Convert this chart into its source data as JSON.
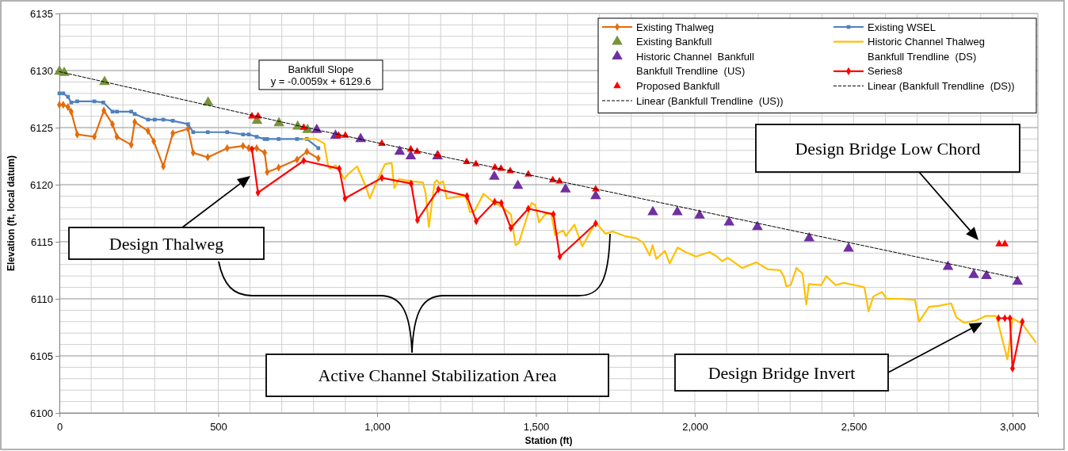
{
  "chart_data": {
    "type": "line",
    "xlabel": "Station (ft)",
    "ylabel": "Elevation (ft, local datum)",
    "xlim": [
      0,
      3080
    ],
    "ylim": [
      6100,
      6135
    ],
    "xticks": [
      0,
      500,
      {
        "value": 1000,
        "label": "1,000"
      },
      {
        "value": 1500,
        "label": "1,500"
      },
      {
        "value": 2000,
        "label": "2,000"
      },
      {
        "value": 2500,
        "label": "2,500"
      },
      {
        "value": 3000,
        "label": "3,000"
      }
    ],
    "yticks": [
      6100,
      6105,
      6110,
      6115,
      6120,
      6125,
      6130,
      6135
    ],
    "grid": true,
    "legend": "top right",
    "series": [
      {
        "name": "Existing Thalweg",
        "marker": "diamond",
        "color": "#e46c0a",
        "x": [
          0,
          12,
          27,
          37,
          56,
          110,
          140,
          167,
          181,
          226,
          237,
          279,
          297,
          327,
          357,
          405,
          421,
          467,
          528,
          578,
          596,
          621,
          646,
          654,
          690,
          748,
          779,
          815
        ],
        "values": [
          6127.0,
          6127.0,
          6126.8,
          6126.4,
          6124.4,
          6124.2,
          6126.5,
          6125.3,
          6124.2,
          6123.5,
          6125.5,
          6124.7,
          6123.8,
          6121.6,
          6124.5,
          6124.9,
          6122.8,
          6122.4,
          6123.2,
          6123.4,
          6123.2,
          6123.2,
          6122.8,
          6121.1,
          6121.5,
          6122.2,
          6122.9,
          6122.3
        ]
      },
      {
        "name": "Existing WSEL",
        "marker": "square",
        "color": "#4f81bd",
        "x": [
          0,
          12,
          27,
          37,
          56,
          110,
          138,
          167,
          181,
          226,
          237,
          279,
          300,
          327,
          357,
          405,
          421,
          467,
          528,
          578,
          596,
          621,
          646,
          654,
          690,
          748,
          779,
          815
        ],
        "values": [
          6128.0,
          6128.0,
          6127.7,
          6127.2,
          6127.3,
          6127.3,
          6127.2,
          6126.4,
          6126.4,
          6126.4,
          6126.2,
          6125.7,
          6125.7,
          6125.7,
          6125.6,
          6125.3,
          6124.6,
          6124.6,
          6124.6,
          6124.4,
          6124.4,
          6124.2,
          6124.0,
          6124.0,
          6124.0,
          6124.0,
          6124.0,
          6123.2
        ]
      },
      {
        "name": "Existing Bankfull",
        "type": "scatter",
        "marker": "triangle",
        "color": "#77933c",
        "x": [
          0,
          15,
          142,
          468,
          622,
          691,
          750,
          781
        ],
        "values": [
          6129.9,
          6129.8,
          6129.0,
          6127.2,
          6125.6,
          6125.4,
          6125.1,
          6124.8
        ]
      },
      {
        "name": "Historic Channel Thalweg",
        "marker": "none",
        "color": "#ffc000",
        "x": [
          768,
          808,
          834,
          846,
          852,
          869,
          879,
          896,
          912,
          937,
          948,
          962,
          977,
          1004,
          1025,
          1046,
          1054,
          1069,
          1107,
          1144,
          1153,
          1163,
          1181,
          1188,
          1196,
          1208,
          1219,
          1279,
          1292,
          1307,
          1335,
          1369,
          1396,
          1421,
          1436,
          1446,
          1486,
          1498,
          1510,
          1529,
          1548,
          1560,
          1586,
          1594,
          1621,
          1646,
          1688,
          1719,
          1741,
          1779,
          1817,
          1838,
          1858,
          1867,
          1879,
          1906,
          1921,
          1946,
          1971,
          2004,
          2046,
          2070,
          2086,
          2104,
          2149,
          2193,
          2229,
          2269,
          2281,
          2288,
          2302,
          2320,
          2339,
          2351,
          2359,
          2398,
          2414,
          2443,
          2469,
          2505,
          2534,
          2547,
          2562,
          2589,
          2604,
          2646,
          2693,
          2706,
          2737,
          2771,
          2807,
          2823,
          2847,
          2886,
          2917,
          2948,
          2953,
          2984,
          3000,
          3031,
          3073
        ],
        "values": [
          6124.0,
          6124.0,
          6123.6,
          6121.6,
          6121.4,
          6121.7,
          6121.4,
          6120.5,
          6121.0,
          6121.6,
          6120.9,
          6120.0,
          6118.8,
          6120.6,
          6121.8,
          6121.9,
          6119.7,
          6120.5,
          6120.3,
          6120.2,
          6119.2,
          6116.3,
          6120.2,
          6120.4,
          6120.1,
          6120.3,
          6118.8,
          6119.0,
          6117.6,
          6117.7,
          6119.2,
          6118.4,
          6118.0,
          6117.4,
          6114.7,
          6114.9,
          6118.4,
          6118.2,
          6116.7,
          6117.4,
          6117.5,
          6115.6,
          6116.0,
          6115.5,
          6116.5,
          6114.6,
          6116.7,
          6115.7,
          6115.9,
          6115.5,
          6115.3,
          6114.9,
          6113.8,
          6114.7,
          6113.5,
          6114.2,
          6113.1,
          6114.5,
          6114.1,
          6113.7,
          6114.1,
          6113.7,
          6113.3,
          6113.6,
          6112.7,
          6113.2,
          6112.6,
          6112.5,
          6111.9,
          6111.1,
          6111.2,
          6112.7,
          6112.2,
          6109.5,
          6111.3,
          6111.2,
          6112.0,
          6111.2,
          6111.4,
          6111.2,
          6111.0,
          6108.9,
          6110.2,
          6110.6,
          6110.0,
          6110.0,
          6109.9,
          6108.0,
          6109.3,
          6109.4,
          6109.6,
          6108.4,
          6107.9,
          6108.1,
          6108.5,
          6108.5,
          6108.1,
          6104.7,
          6108.3,
          6107.8,
          6106.2
        ]
      },
      {
        "name": "Historic Channel  Bankfull",
        "type": "scatter",
        "marker": "triangle",
        "color": "#7030a0",
        "x": [
          810,
          869,
          948,
          1071,
          1106,
          1190,
          1369,
          1443,
          1593,
          1688,
          1868,
          1945,
          2015,
          2108,
          2197,
          2360,
          2484,
          2797,
          2878,
          2918,
          3016
        ],
        "values": [
          6124.8,
          6124.3,
          6124.0,
          6122.9,
          6122.5,
          6122.5,
          6120.7,
          6119.9,
          6119.6,
          6119.0,
          6117.6,
          6117.6,
          6117.3,
          6116.7,
          6116.3,
          6115.3,
          6114.4,
          6112.8,
          6112.1,
          6112.0,
          6111.5
        ]
      },
      {
        "name": "Bankfull Trendline  (DS)",
        "type": "scatter",
        "marker": "none"
      },
      {
        "name": "Bankfull Trendline  (US)",
        "type": "scatter",
        "marker": "none"
      },
      {
        "name": "Series8",
        "marker": "diamond",
        "color": "#ff0000",
        "x": [
          606,
          625,
          769,
          881,
          899,
          1015,
          1107,
          1127,
          1193,
          1283,
          1312,
          1370,
          1391,
          1421,
          1476,
          1555,
          1575,
          1688,
          2300,
          2956,
          2976,
          2992,
          3000,
          3031
        ],
        "values": [
          6123.1,
          6119.3,
          6122.1,
          6121.4,
          6118.8,
          6120.6,
          6120.1,
          6116.9,
          6119.6,
          6119.0,
          6116.8,
          6118.5,
          6118.4,
          6116.2,
          6117.9,
          6117.4,
          6113.7,
          6116.6,
          null,
          6108.3,
          6108.3,
          6108.3,
          6103.9,
          6108.0
        ]
      },
      {
        "name": "Proposed Bankfull",
        "type": "scatter",
        "marker": "triangle",
        "color": "#ff0000",
        "x": [
          606,
          625,
          769,
          879,
          900,
          1015,
          1106,
          1126,
          1192,
          1282,
          1311,
          1371,
          1390,
          1419,
          1476,
          1553,
          1574,
          1688,
          2958,
          2976
        ],
        "values": [
          6126.0,
          6126.0,
          6125.0,
          6124.3,
          6124.3,
          6123.6,
          6123.1,
          6122.9,
          6122.6,
          6122.0,
          6121.8,
          6121.5,
          6121.4,
          6121.2,
          6120.9,
          6120.4,
          6120.3,
          6119.6,
          6114.8,
          6114.8
        ]
      },
      {
        "name": "Linear (Bankfull Trendline  (DS))",
        "marker": "none",
        "line_style": "dashed",
        "color": "#000000",
        "x": [
          810,
          3016
        ],
        "values": [
          6124.8,
          6111.8
        ]
      },
      {
        "name": "Linear (Bankfull Trendline  (US))",
        "marker": "none",
        "line_style": "dashed",
        "color": "#000000",
        "x": [
          0,
          810
        ],
        "values": [
          6129.9,
          6124.8
        ]
      }
    ],
    "annotations": [
      "Bankfull Slope\ny = -0.0059x  + 6129.6",
      "Design Thalweg",
      "Active Channel Stabilization Area",
      "Design Bridge Low Chord",
      "Design Bridge Invert"
    ]
  }
}
